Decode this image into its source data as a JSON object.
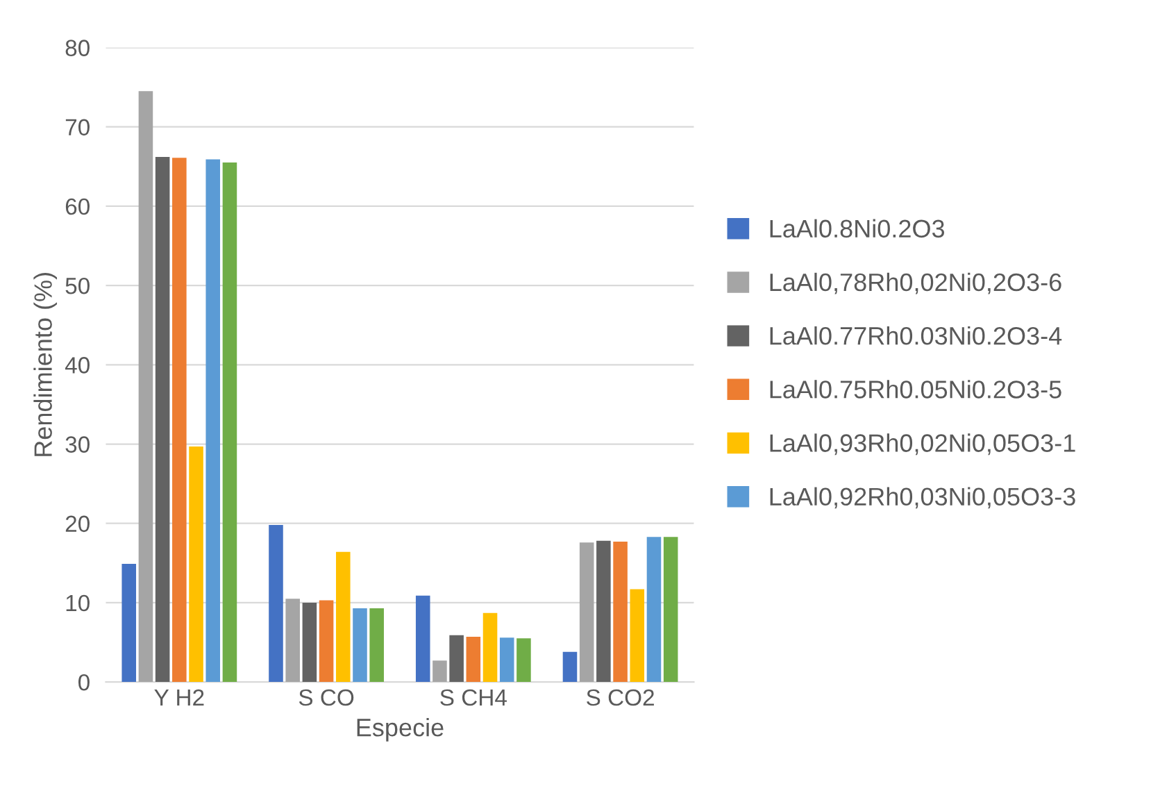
{
  "chart_data": {
    "type": "bar",
    "xlabel": "Especie",
    "ylabel": "Rendimiento (%)",
    "categories": [
      "Y H2",
      "S CO",
      "S CH4",
      "S CO2"
    ],
    "series": [
      {
        "name": "LaAl0.8Ni0.2O3",
        "color": "#4472c4",
        "values": [
          14.9,
          19.8,
          10.9,
          3.8
        ]
      },
      {
        "name": "LaAl0,78Rh0,02Ni0,2O3-6",
        "color": "#a5a5a5",
        "values": [
          74.5,
          10.5,
          2.7,
          17.6
        ]
      },
      {
        "name": "LaAl0.77Rh0.03Ni0.2O3-4",
        "color": "#636363",
        "values": [
          66.2,
          10.0,
          5.9,
          17.8
        ]
      },
      {
        "name": "LaAl0.75Rh0.05Ni0.2O3-5",
        "color": "#ed7d31",
        "values": [
          66.1,
          10.3,
          5.7,
          17.7
        ]
      },
      {
        "name": "LaAl0,93Rh0,02Ni0,05O3-1",
        "color": "#ffc000",
        "values": [
          29.7,
          16.4,
          8.7,
          11.7
        ]
      },
      {
        "name": "LaAl0,92Rh0,03Ni0,05O3-3",
        "color": "#5b9bd5",
        "values": [
          65.9,
          9.3,
          5.6,
          18.3
        ]
      },
      {
        "color": "#70ad47",
        "values": [
          65.5,
          9.3,
          5.5,
          18.3
        ]
      }
    ],
    "ylim": [
      0,
      80
    ],
    "yticks": [
      0,
      10,
      20,
      30,
      40,
      50,
      60,
      70,
      80
    ],
    "grid": "y",
    "legend": "right"
  }
}
